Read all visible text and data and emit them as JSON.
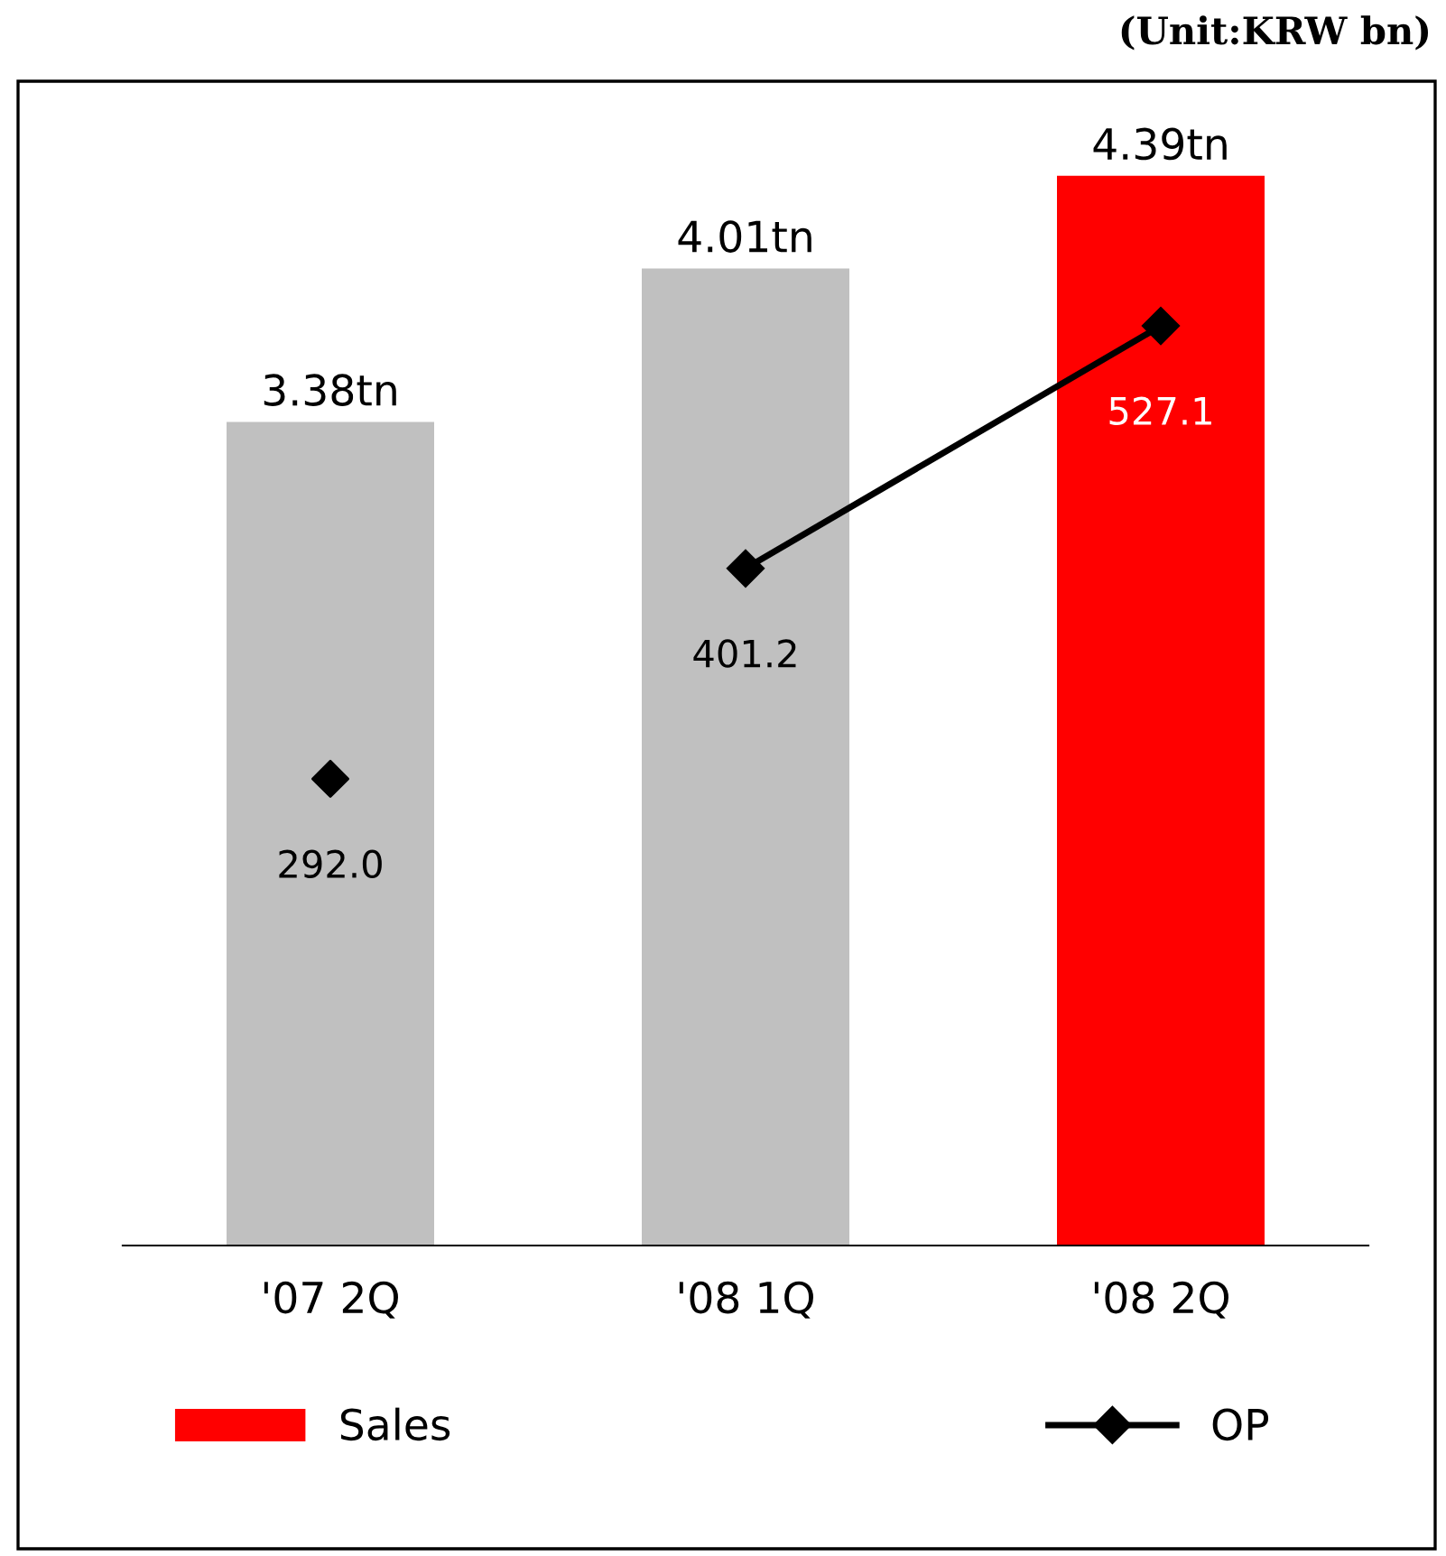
{
  "chart_data": {
    "type": "bar",
    "categories": [
      "'07 2Q",
      "'08 1Q",
      "'08 2Q"
    ],
    "series": [
      {
        "name": "Sales",
        "colors": [
          "#c0c0c0",
          "#c0c0c0",
          "#ff0000"
        ],
        "color": "#ff0000",
        "values": [
          3.38,
          4.01,
          4.39
        ],
        "value_labels": [
          "3.38tn",
          "4.01tn",
          "4.39tn"
        ]
      },
      {
        "name": "OP",
        "type": "line",
        "axis": "y2",
        "color": "#000000",
        "marker": "diamond",
        "values": [
          null,
          401.2,
          527.1
        ],
        "value_labels": [
          null,
          "401.2",
          "527.1"
        ]
      },
      {
        "type": "scatter",
        "axis": "y2",
        "color": "#000000",
        "marker": "diamond",
        "values": [
          292.0,
          null,
          null
        ],
        "value_labels": [
          "292.0",
          null,
          null
        ]
      }
    ],
    "legend": "bottom",
    "grid": false,
    "annotations": [
      "(Unit:KRW bn)"
    ]
  }
}
